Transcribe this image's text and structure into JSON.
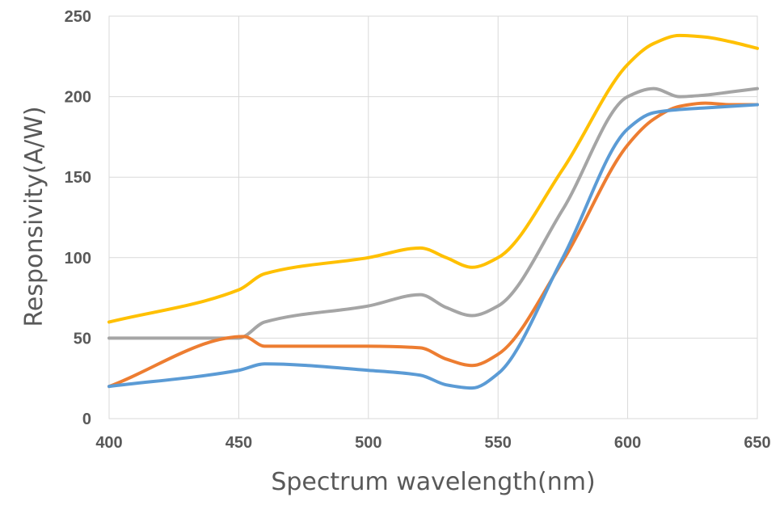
{
  "chart_data": {
    "type": "line",
    "title": "",
    "xlabel": "Spectrum wavelength(nm)",
    "ylabel": "Responsivity(A/W)",
    "xlim": [
      400,
      650
    ],
    "ylim": [
      0,
      250
    ],
    "xticks": [
      400,
      450,
      500,
      550,
      600,
      650
    ],
    "yticks": [
      0,
      50,
      100,
      150,
      200,
      250
    ],
    "grid": true,
    "legend": "none",
    "series": [
      {
        "color": "#FFC000",
        "x": [
          400,
          450,
          460,
          500,
          520,
          530,
          540,
          550,
          575,
          600,
          610,
          620,
          630,
          640,
          650
        ],
        "y": [
          60,
          80,
          90,
          100,
          106,
          100,
          94,
          100,
          155,
          220,
          233,
          238,
          237,
          234,
          230
        ]
      },
      {
        "color": "#A5A5A5",
        "x": [
          400,
          450,
          460,
          500,
          520,
          530,
          540,
          550,
          575,
          600,
          610,
          620,
          630,
          640,
          650
        ],
        "y": [
          50,
          50,
          60,
          70,
          77,
          69,
          64,
          70,
          130,
          200,
          205,
          200,
          201,
          203,
          205
        ]
      },
      {
        "color": "#ED7D31",
        "x": [
          400,
          452,
          460,
          500,
          520,
          530,
          540,
          550,
          575,
          600,
          610,
          620,
          630,
          640,
          650
        ],
        "y": [
          20,
          51,
          45,
          45,
          44,
          37,
          33,
          40,
          98,
          170,
          186,
          194,
          196,
          195,
          195
        ]
      },
      {
        "color": "#5B9BD5",
        "x": [
          400,
          450,
          460,
          500,
          520,
          530,
          540,
          550,
          575,
          600,
          610,
          620,
          630,
          640,
          650
        ],
        "y": [
          20,
          30,
          34,
          30,
          27,
          21,
          19,
          28,
          100,
          180,
          190,
          192,
          193,
          194,
          195
        ]
      }
    ]
  }
}
